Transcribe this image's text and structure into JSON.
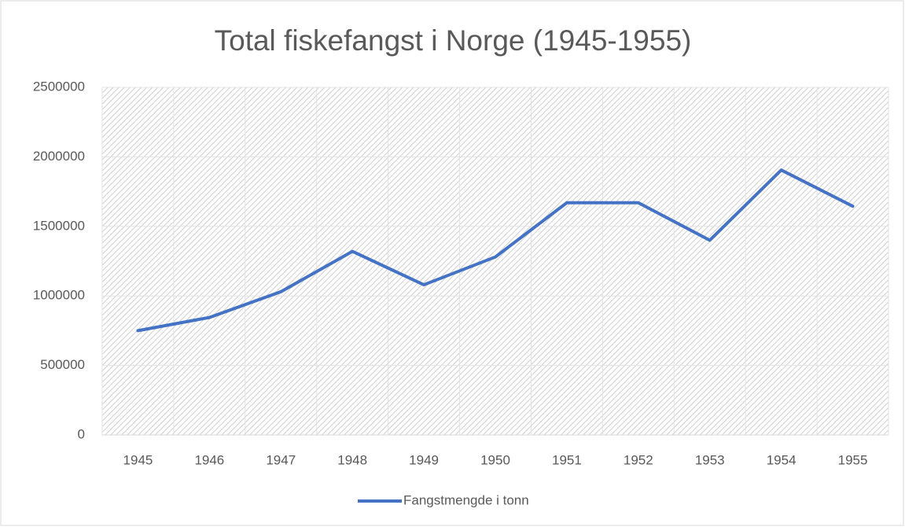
{
  "chart_data": {
    "type": "line",
    "title": "Total fiskefangst i Norge (1945-1955)",
    "categories": [
      "1945",
      "1946",
      "1947",
      "1948",
      "1949",
      "1950",
      "1951",
      "1952",
      "1953",
      "1954",
      "1955"
    ],
    "series": [
      {
        "name": "Fangstmengde i tonn",
        "color": "#4472c4",
        "values": [
          750000,
          845000,
          1030000,
          1320000,
          1080000,
          1280000,
          1670000,
          1670000,
          1400000,
          1905000,
          1645000
        ]
      }
    ],
    "ylim": [
      0,
      2500000
    ],
    "yticks": [
      0,
      500000,
      1000000,
      1500000,
      2000000,
      2500000
    ],
    "grid": true,
    "legend": "bottom"
  }
}
